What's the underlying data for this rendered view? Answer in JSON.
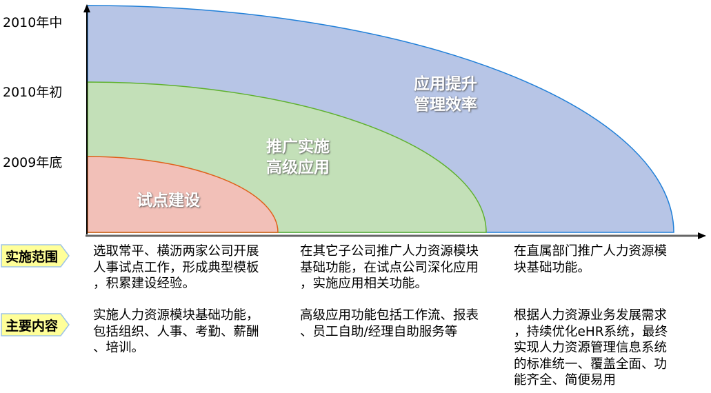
{
  "y_axis_labels": [
    "2010年中",
    "2010年初",
    "2009年底"
  ],
  "stages": [
    {
      "label_lines": [
        "应用提升",
        "管理效率"
      ],
      "color": "#b7c5e6",
      "border": "#1f7fd8"
    },
    {
      "label_lines": [
        "推广实施",
        "高级应用"
      ],
      "color": "#c3e0b8",
      "border": "#5fb12e"
    },
    {
      "label_lines": [
        "试点建设"
      ],
      "color": "#f2c0b8",
      "border": "#e0601a"
    }
  ],
  "rows": [
    {
      "tag": "实施范围",
      "cells": [
        "选取常平、横沥两家公司开展\n人事试点工作，形成典型模板\n，积累建设经验。",
        "在其它子公司推广人力资源模块\n基础功能，在试点公司深化应用\n，实施应用相关功能。",
        "在直属部门推广人力资源模\n块基础功能。"
      ]
    },
    {
      "tag": "主要内容",
      "cells": [
        "实施人力资源模块基础功能，\n包括组织、人事、考勤、薪酬\n、培训。",
        "高级应用功能包括工作流、报表\n、员工自助/经理自助服务等",
        "根据人力资源业务发展需求\n，持续优化eHR系统，最终\n实现人力资源管理信息系统\n的标准统一、覆盖全面、功\n能齐全、简便易用"
      ]
    }
  ],
  "tag_color": "#ffff99"
}
